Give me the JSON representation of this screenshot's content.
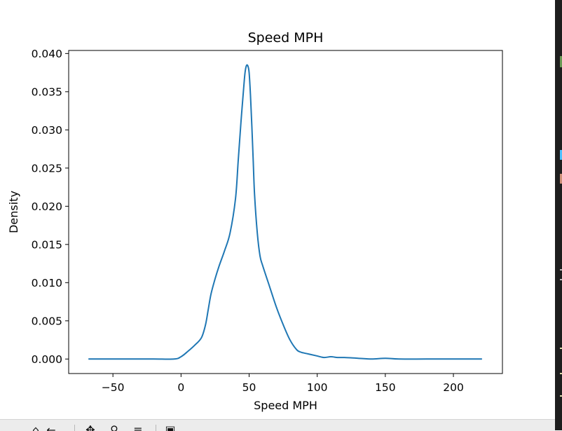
{
  "chart_data": {
    "type": "line",
    "title": "Speed MPH",
    "xlabel": "Speed MPH",
    "ylabel": "Density",
    "xlim": [
      -82.5,
      236
    ],
    "ylim": [
      -0.0019,
      0.0404
    ],
    "x_ticks": [
      -50,
      0,
      50,
      100,
      150,
      200
    ],
    "x_tick_labels": [
      "−50",
      "0",
      "50",
      "100",
      "150",
      "200"
    ],
    "y_ticks": [
      0.0,
      0.005,
      0.01,
      0.015,
      0.02,
      0.025,
      0.03,
      0.035,
      0.04
    ],
    "y_tick_labels": [
      "0.000",
      "0.005",
      "0.010",
      "0.015",
      "0.020",
      "0.025",
      "0.030",
      "0.035",
      "0.040"
    ],
    "grid": false,
    "legend": "none",
    "series_color": "#1f77b4",
    "series": [
      {
        "x": [
          -68,
          -40,
          -20,
          -5,
          0,
          5,
          10,
          15,
          18,
          20,
          22,
          25,
          28,
          32,
          36,
          40,
          42,
          44,
          46,
          47,
          48,
          49,
          50,
          51,
          52,
          53,
          54,
          56,
          58,
          60,
          65,
          70,
          75,
          80,
          85,
          88,
          90,
          95,
          100,
          105,
          110,
          115,
          120,
          130,
          140,
          150,
          160,
          180,
          200,
          221
        ],
        "y": [
          0.0,
          0.0,
          0.0,
          0.0,
          0.0003,
          0.001,
          0.0018,
          0.0028,
          0.0045,
          0.0065,
          0.0085,
          0.0105,
          0.0122,
          0.0142,
          0.0165,
          0.021,
          0.026,
          0.031,
          0.0355,
          0.0375,
          0.0384,
          0.0384,
          0.0375,
          0.0345,
          0.0305,
          0.026,
          0.0215,
          0.0165,
          0.0135,
          0.0122,
          0.0095,
          0.0068,
          0.0045,
          0.0025,
          0.0012,
          0.0009,
          0.0008,
          0.0006,
          0.0004,
          0.0002,
          0.0003,
          0.0002,
          0.0002,
          0.0001,
          0.0,
          0.0001,
          0.0,
          0.0,
          0.0,
          0.0
        ]
      }
    ]
  },
  "toolbar": {
    "buttons": [
      {
        "name": "home-button",
        "glyph": "⌂"
      },
      {
        "name": "back-button",
        "glyph": "←"
      },
      {
        "name": "forward-button",
        "glyph": "→"
      },
      {
        "name": "pan-button",
        "glyph": "✥"
      },
      {
        "name": "zoom-button",
        "glyph": "⚲"
      },
      {
        "name": "configure-button",
        "glyph": "≡"
      },
      {
        "name": "save-button",
        "glyph": "▣"
      }
    ]
  },
  "side_strip": {
    "background": "#1e1e1e",
    "marks": [
      "#6a9955",
      "#4fc1ff",
      "#ce9178"
    ]
  }
}
